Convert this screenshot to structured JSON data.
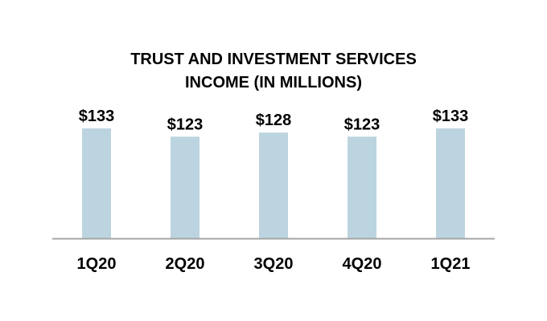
{
  "chart_data": {
    "type": "bar",
    "title_lines": [
      "TRUST AND INVESTMENT SERVICES",
      "INCOME (IN MILLIONS)"
    ],
    "categories": [
      "1Q20",
      "2Q20",
      "3Q20",
      "4Q20",
      "1Q21"
    ],
    "values": [
      133,
      123,
      128,
      123,
      133
    ],
    "data_labels": [
      "$133",
      "$123",
      "$128",
      "$123",
      "$133"
    ],
    "xlabel": "",
    "ylabel": "",
    "ylim": [
      0,
      133
    ],
    "grid": false,
    "legend": "none",
    "bar_color": "#bcd4e0",
    "axis_color": "#a6a6a6"
  }
}
